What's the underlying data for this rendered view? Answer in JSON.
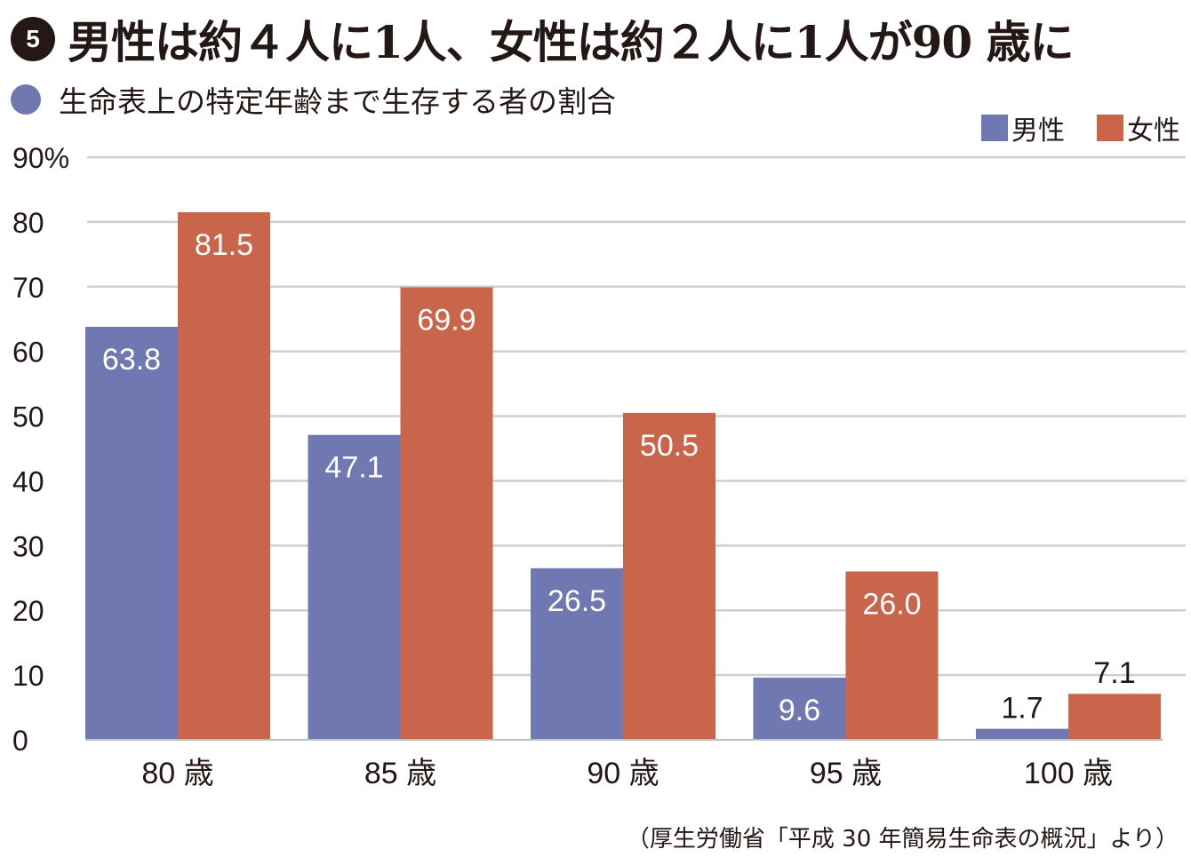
{
  "header": {
    "badge": "5",
    "title": "男性は約４人に1人、女性は約２人に1人が90 歳に"
  },
  "subtitle": "生命表上の特定年齢まで生存する者の割合",
  "source": "（厚生労働省「平成 30 年簡易生命表の概況」より）",
  "colors": {
    "male": "#6f78b0",
    "female": "#c9654a",
    "grid": "#cfcfcf",
    "accent_dot": "#6f78b0"
  },
  "chart_data": {
    "type": "bar",
    "categories": [
      "80 歳",
      "85 歳",
      "90 歳",
      "95 歳",
      "100 歳"
    ],
    "series": [
      {
        "name": "男性",
        "values": [
          63.8,
          47.1,
          26.5,
          9.6,
          1.7
        ],
        "labels": [
          "63.8",
          "47.1",
          "26.5",
          "9.6",
          "1.7"
        ]
      },
      {
        "name": "女性",
        "values": [
          81.5,
          69.9,
          50.5,
          26.0,
          7.1
        ],
        "labels": [
          "81.5",
          "69.9",
          "50.5",
          "26.0",
          "7.1"
        ]
      }
    ],
    "y_ticks": [
      "0",
      "10",
      "20",
      "30",
      "40",
      "50",
      "60",
      "70",
      "80",
      "90%"
    ],
    "ylim": [
      0,
      90
    ],
    "grid": true,
    "legend_position": "top-right"
  }
}
